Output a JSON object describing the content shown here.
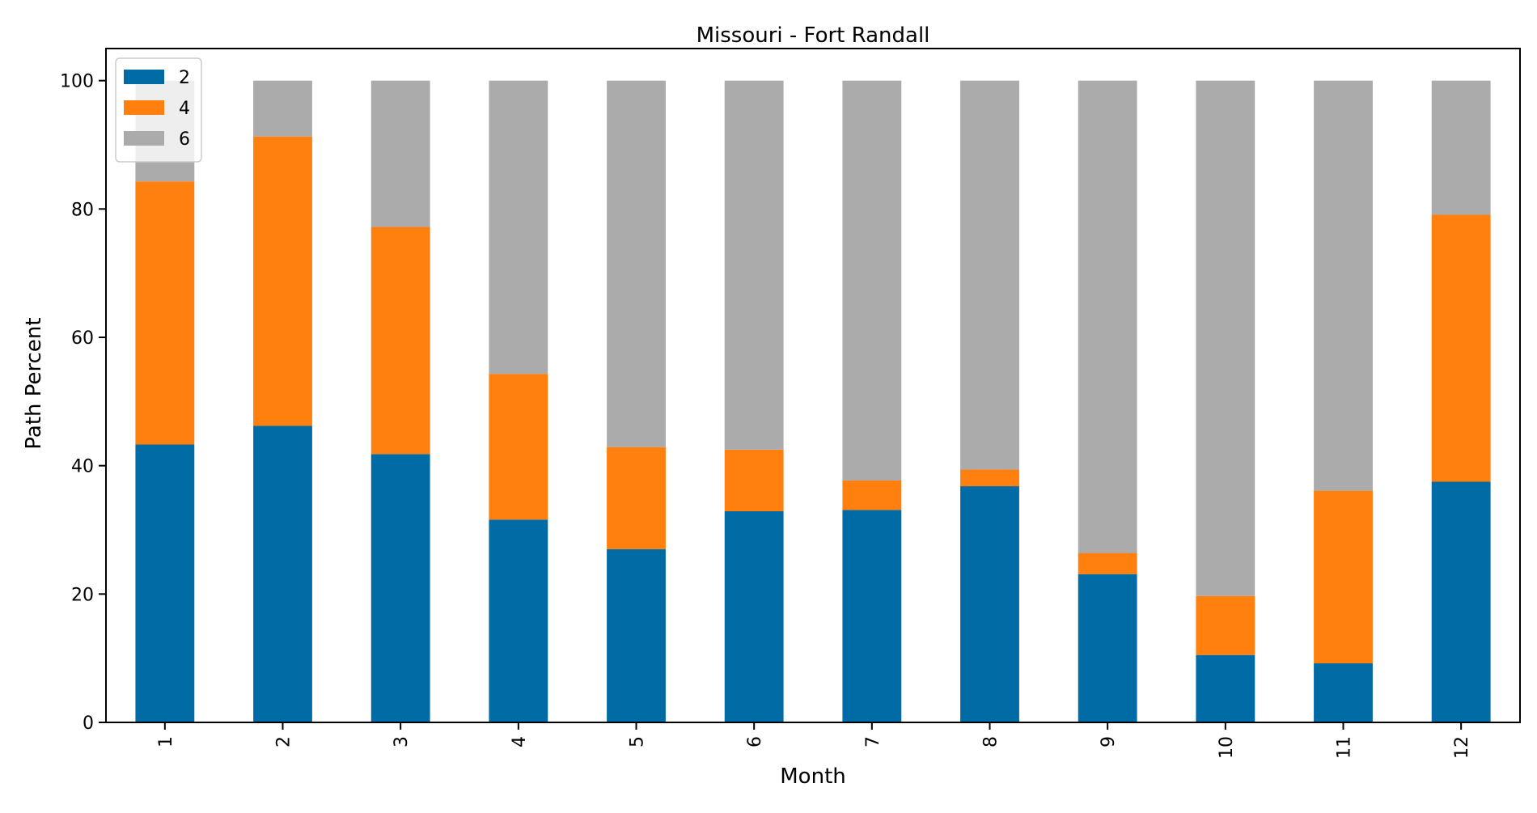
{
  "chart_data": {
    "type": "bar",
    "stacked": true,
    "title": "Missouri - Fort Randall",
    "xlabel": "Month",
    "ylabel": "Path Percent",
    "ylim": [
      0,
      105
    ],
    "yticks": [
      0,
      20,
      40,
      60,
      80,
      100
    ],
    "grid": false,
    "legend_position": "top-left",
    "categories": [
      "1",
      "2",
      "3",
      "4",
      "5",
      "6",
      "7",
      "8",
      "9",
      "10",
      "11",
      "12"
    ],
    "series": [
      {
        "name": "2",
        "color": "#006BA4",
        "values": [
          43.3,
          46.2,
          41.8,
          31.6,
          27.0,
          32.9,
          33.1,
          36.8,
          23.1,
          10.5,
          9.2,
          37.5
        ]
      },
      {
        "name": "4",
        "color": "#FF800E",
        "values": [
          41.0,
          45.1,
          35.4,
          22.7,
          15.9,
          9.6,
          4.6,
          2.6,
          3.3,
          9.2,
          26.9,
          41.6
        ]
      },
      {
        "name": "6",
        "color": "#ABABAB",
        "values": [
          15.7,
          8.7,
          22.8,
          45.7,
          57.1,
          57.5,
          62.3,
          60.6,
          73.6,
          80.3,
          63.9,
          20.9
        ]
      }
    ]
  }
}
